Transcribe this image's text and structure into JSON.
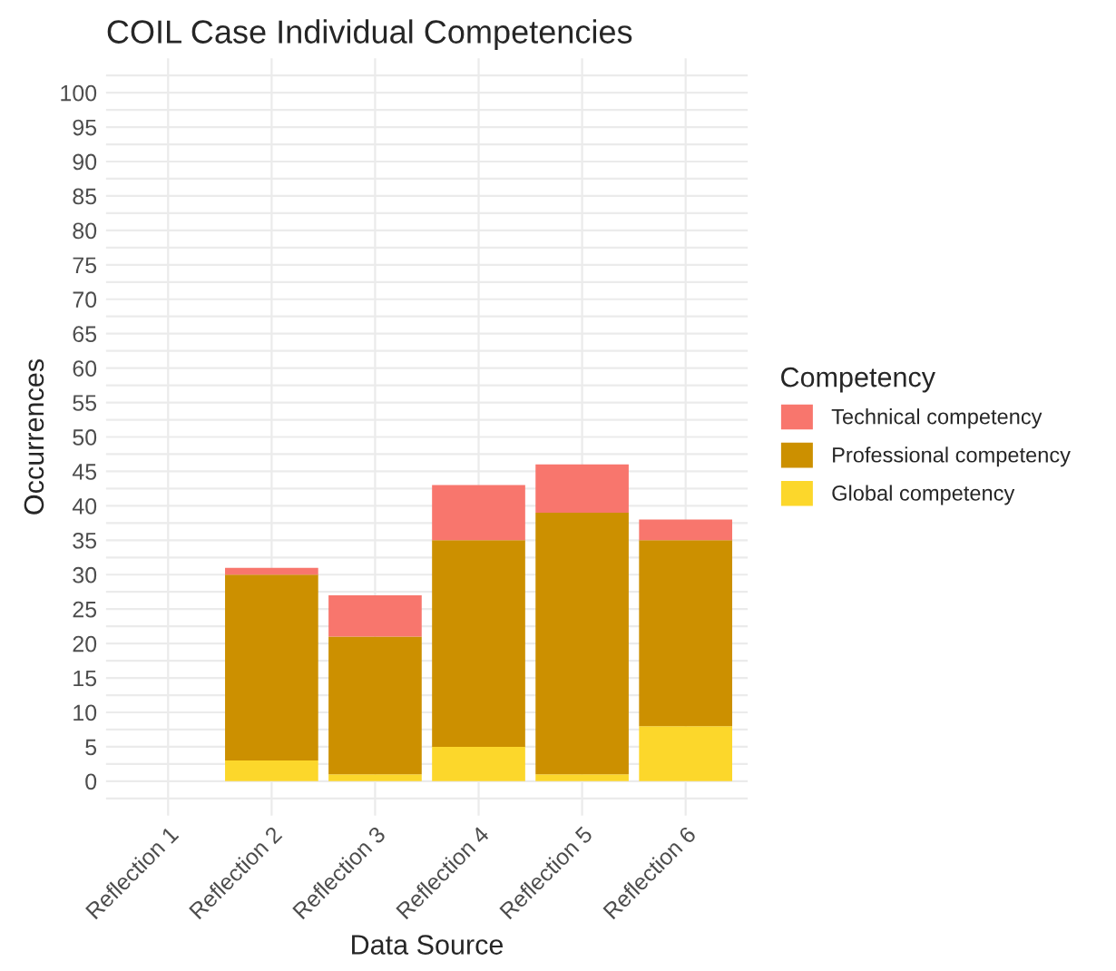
{
  "chart_data": {
    "type": "bar",
    "title": "COIL Case Individual Competencies",
    "xlabel": "Data Source",
    "ylabel": "Occurrences",
    "legend_title": "Competency",
    "categories": [
      "Reflection 1",
      "Reflection 2",
      "Reflection 3",
      "Reflection 4",
      "Reflection 5",
      "Reflection 6"
    ],
    "stacked": true,
    "series": [
      {
        "name": "Global competency",
        "color": "#fcd72b",
        "values": [
          0,
          3,
          1,
          5,
          1,
          8
        ]
      },
      {
        "name": "Professional competency",
        "color": "#cc9000",
        "values": [
          0,
          27,
          20,
          30,
          38,
          27
        ]
      },
      {
        "name": "Technical competency",
        "color": "#f8766d",
        "values": [
          0,
          1,
          6,
          8,
          7,
          3
        ]
      }
    ],
    "ylim": [
      -5,
      105
    ],
    "yticks": [
      0,
      5,
      10,
      15,
      20,
      25,
      30,
      35,
      40,
      45,
      50,
      55,
      60,
      65,
      70,
      75,
      80,
      85,
      90,
      95,
      100
    ],
    "grid": true,
    "legend": "right"
  }
}
